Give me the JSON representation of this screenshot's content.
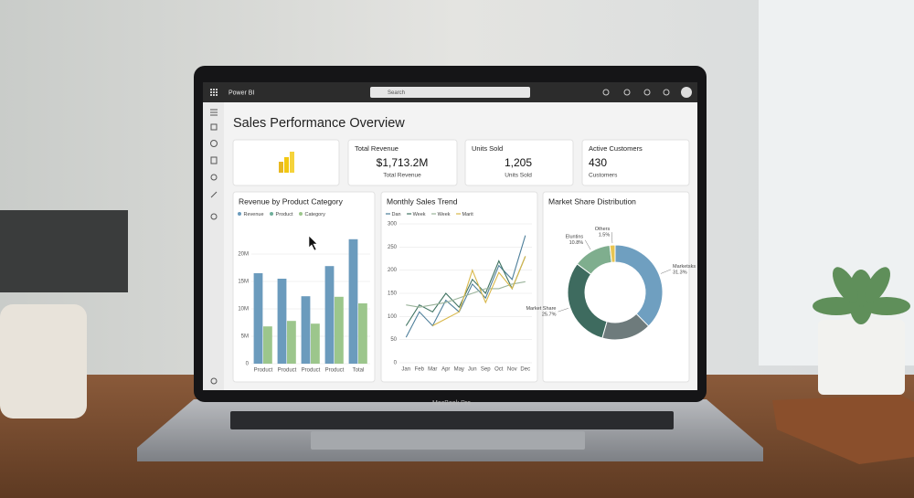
{
  "app": {
    "name": "Power BI",
    "search": "Search"
  },
  "page": {
    "title": "Sales Performance Overview"
  },
  "kpis": [
    {
      "title": "Total Revenue",
      "value": "$1,713.2M",
      "caption": "Total Revenue"
    },
    {
      "title": "Units Sold",
      "value": "1,205",
      "caption": "Units Sold"
    },
    {
      "title": "Active Customers",
      "value": "430",
      "caption": "Customers"
    }
  ],
  "device": {
    "label": "MacBook Pro"
  },
  "chart_data": [
    {
      "type": "bar",
      "title": "Revenue by Product Category",
      "categories": [
        "Product",
        "Product",
        "Product",
        "Product",
        "Total"
      ],
      "series": [
        {
          "name": "Revenue",
          "color": "#6b9bbd",
          "values": [
            16.5,
            15.5,
            12.3,
            17.8,
            22.7
          ]
        },
        {
          "name": "Product",
          "color": "#6fae9a",
          "values": [
            null,
            null,
            null,
            null,
            null
          ]
        },
        {
          "name": "Category",
          "color": "#9cc68c",
          "values": [
            6.8,
            7.8,
            7.3,
            12.2,
            11
          ]
        }
      ],
      "ylim": [
        0,
        25
      ],
      "yticks": [
        0,
        {
          "value": 5,
          "label": "5M"
        },
        {
          "value": 10,
          "label": "10M"
        },
        {
          "value": 15,
          "label": "15M"
        },
        {
          "value": 20,
          "label": "20M"
        }
      ],
      "grid": true
    },
    {
      "type": "line",
      "title": "Monthly Sales Trend",
      "categories": [
        "Jan",
        "Feb",
        "Mar",
        "Apr",
        "May",
        "Jun",
        "Sep",
        "Oct",
        "Nov",
        "Dec"
      ],
      "series": [
        {
          "name": "Dan",
          "color": "#4e7f9a",
          "values": [
            55,
            110,
            80,
            135,
            110,
            170,
            140,
            210,
            180,
            275
          ]
        },
        {
          "name": "Week",
          "color": "#3e7260",
          "values": [
            80,
            125,
            110,
            150,
            120,
            180,
            150,
            220,
            160,
            230
          ]
        },
        {
          "name": "Week",
          "color": "#9ab39a",
          "values": [
            125,
            120,
            125,
            130,
            140,
            150,
            160,
            160,
            170,
            175
          ]
        },
        {
          "name": "Marit",
          "color": "#d9b84a",
          "values": [
            null,
            null,
            80,
            95,
            110,
            200,
            130,
            195,
            160,
            230
          ]
        }
      ],
      "ylim": [
        0,
        300
      ],
      "yticks": [
        0,
        50,
        100,
        150,
        200,
        250,
        300
      ],
      "grid": true
    },
    {
      "type": "pie",
      "title": "Market Share Distribution",
      "categories": [
        "Marketsks",
        null,
        "Market Share",
        "Eluntins",
        "Others"
      ],
      "values": [
        31.3,
        14,
        25.7,
        10.8,
        1.5
      ],
      "value_labels": [
        "31.3%",
        null,
        "25.7%",
        "10.8%",
        "1.5%"
      ],
      "colors": [
        "#6f9fc0",
        "#6e7b7c",
        "#3e6b5f",
        "#7fae8e",
        "#e8c552"
      ],
      "donut": true
    }
  ]
}
